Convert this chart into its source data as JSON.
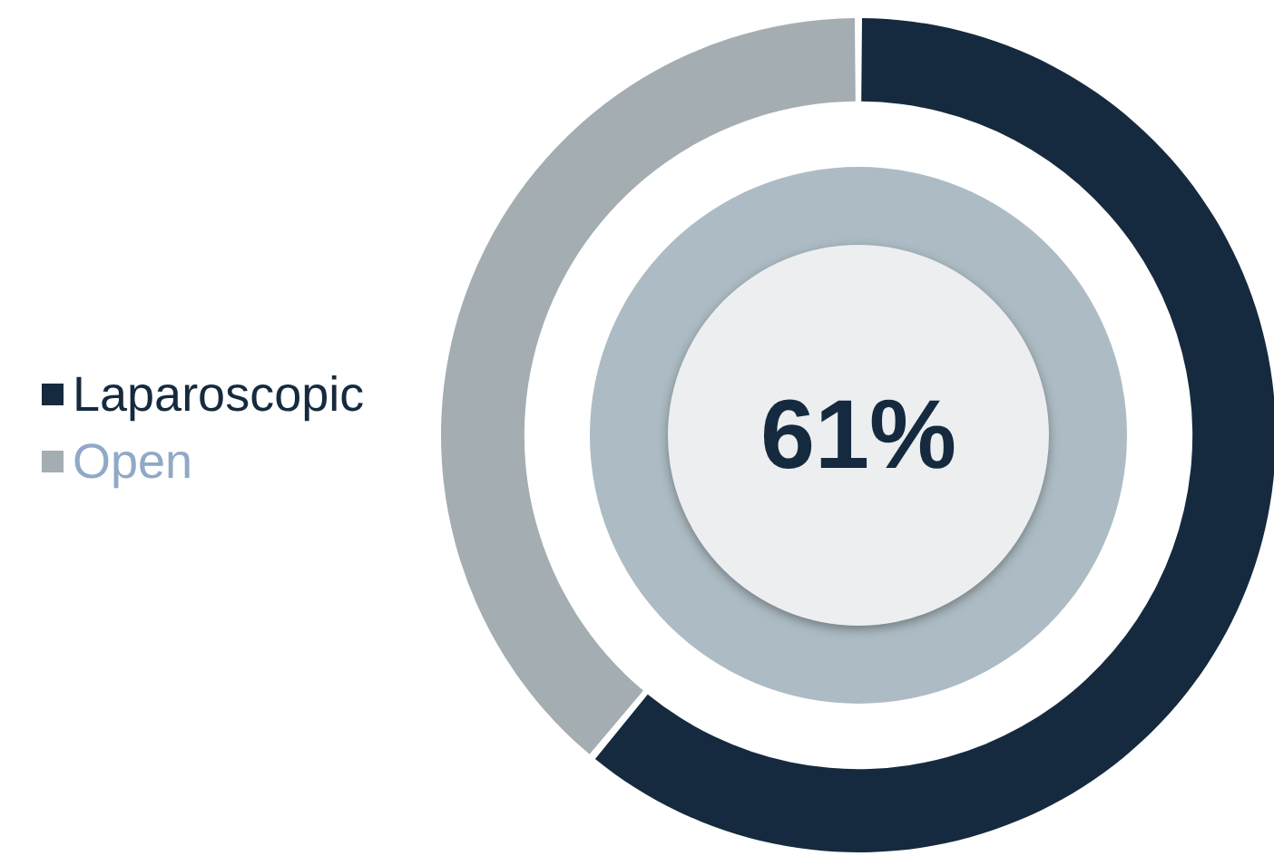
{
  "chart_data": {
    "type": "donut",
    "categories": [
      "Laparoscopic",
      "Open"
    ],
    "values": [
      61,
      39
    ],
    "colors": [
      "#152a3e",
      "#a3adb2"
    ],
    "annotations": [
      "61%"
    ],
    "legend": "left"
  }
}
